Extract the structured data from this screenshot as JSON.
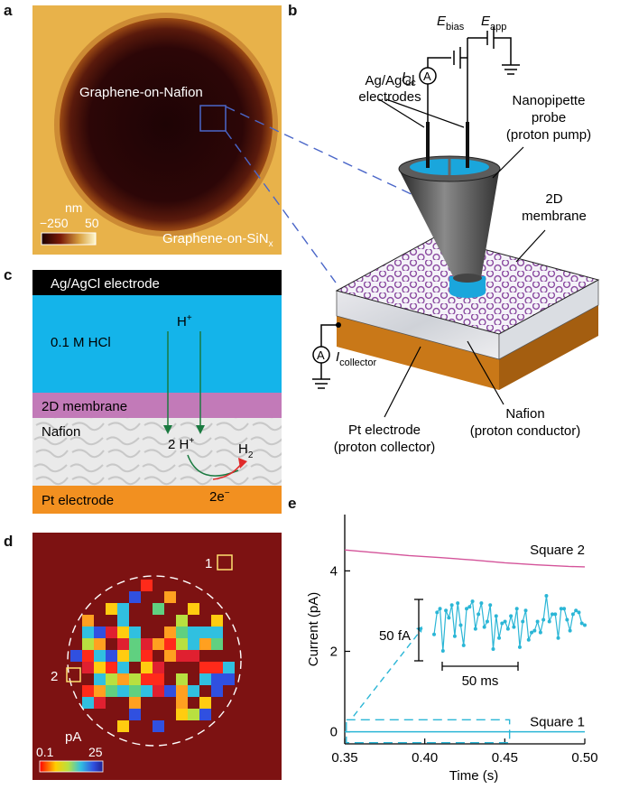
{
  "panels": {
    "a": {
      "label": "a",
      "inner_text": "Graphene-on-Nafion",
      "outer_text": "Graphene-on-SiN",
      "outer_sub": "x",
      "colorbar_unit": "nm",
      "colorbar_min": "−250",
      "colorbar_max": "50"
    },
    "b": {
      "label": "b",
      "E_bias": "E",
      "E_bias_sub": "bias",
      "E_app": "E",
      "E_app_sub": "app",
      "I_dc": "I",
      "I_dc_sub": "dc",
      "ammeter_symbol": "A",
      "electrodes_line1": "Ag/AgCl",
      "electrodes_line2": "electrodes",
      "probe_line1": "Nanopipette",
      "probe_line2": "probe",
      "probe_line3": "(proton pump)",
      "membrane_line1": "2D",
      "membrane_line2": "membrane",
      "collector_I": "I",
      "collector_sub": "collector",
      "pt_line1": "Pt electrode",
      "pt_line2": "(proton collector)",
      "nafion_line1": "Nafion",
      "nafion_line2": "(proton conductor)"
    },
    "c": {
      "label": "c",
      "electrode": "Ag/AgCl electrode",
      "hcl": "0.1 M HCl",
      "hplus": "H",
      "hplus_sup": "+",
      "membrane": "2D membrane",
      "nafion": "Nafion",
      "two_h": "2 H",
      "two_h_sup": "+",
      "h2": "H",
      "h2_sub": "2",
      "electrons": "2e",
      "electrons_sup": "−",
      "pt": "Pt electrode"
    },
    "d": {
      "label": "d",
      "square1": "1",
      "square2": "2",
      "colorbar_unit": "pA",
      "colorbar_min": "0.1",
      "colorbar_max": "25"
    },
    "e": {
      "label": "e",
      "ylabel": "Current (pA)",
      "xlabel": "Time (s)",
      "series_square2": "Square 2",
      "series_square1": "Square 1",
      "scale_y": "50 fA",
      "scale_x": "50 ms"
    }
  },
  "chart_data": {
    "type": "line",
    "xlabel": "Time (s)",
    "ylabel": "Current (pA)",
    "xlim": [
      0.35,
      0.5
    ],
    "ylim": [
      -0.3,
      5.4
    ],
    "xticks": [
      "0.35",
      "0.40",
      "0.45",
      "0.50"
    ],
    "yticks": [
      "0",
      "2",
      "4"
    ],
    "series": [
      {
        "name": "Square 2",
        "color": "#d4549a",
        "x": [
          0.35,
          0.37,
          0.39,
          0.41,
          0.43,
          0.45,
          0.47,
          0.49,
          0.5
        ],
        "values": [
          4.52,
          4.45,
          4.38,
          4.33,
          4.27,
          4.2,
          4.15,
          4.11,
          4.1
        ]
      },
      {
        "name": "Square 1",
        "color": "#2bb6d6",
        "x": [
          0.35,
          0.5
        ],
        "values": [
          0.0,
          0.0
        ]
      }
    ],
    "inset_zoom_values": [
      1.2,
      2.4,
      2.6,
      0.3,
      2.5,
      2.1,
      2.8,
      1.1,
      2.9,
      1.7,
      0.6,
      2.6,
      2.7,
      3.0,
      1.5,
      2.3,
      2.9,
      1.6,
      1.9,
      2.8,
      0.4,
      2.2,
      1.0,
      1.8,
      1.9,
      1.5,
      2.2,
      1.6,
      2.6,
      0.5,
      1.9,
      2.5,
      0.9,
      1.3,
      1.4,
      1.9,
      1.3,
      2.0,
      3.3,
      1.9,
      2.3,
      2.3,
      1.0,
      2.6,
      2.6,
      2.0,
      1.4,
      2.3,
      2.5,
      2.4,
      1.8,
      1.7
    ]
  },
  "colors": {
    "hcl": "#14b4ea",
    "membrane": "#c27ab8",
    "pt": "#f29020",
    "map_bg": "#7d1212",
    "inset_line": "#2bb6d6",
    "square2_line": "#d4549a"
  }
}
